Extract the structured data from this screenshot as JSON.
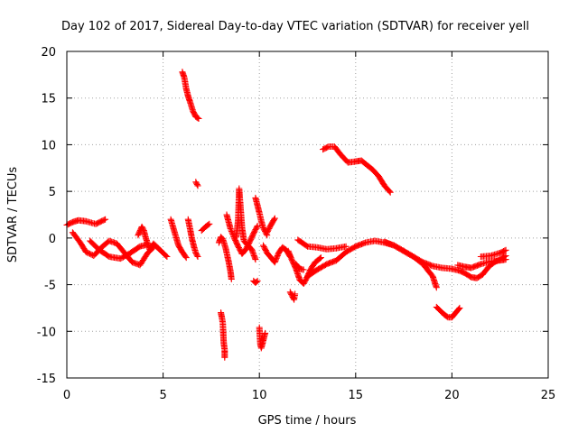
{
  "chart_data": {
    "type": "scatter",
    "title": "Day 102 of 2017, Sidereal Day-to-day VTEC variation (SDTVAR) for receiver yell",
    "xlabel": "GPS time / hours",
    "ylabel": "SDTVAR / TECUs",
    "xlim": [
      0,
      25
    ],
    "ylim": [
      -15,
      20
    ],
    "xticks": [
      "0",
      "5",
      "10",
      "15",
      "20",
      "25"
    ],
    "yticks": [
      "20",
      "15",
      "10",
      "5",
      "0",
      "-5",
      "-10",
      "-15"
    ],
    "grid": true,
    "marker": "+",
    "marker_color": "#ff0000",
    "series": [
      {
        "name": "SDTVAR",
        "segments": [
          [
            [
              0.0,
              1.4
            ],
            [
              0.3,
              1.7
            ],
            [
              0.6,
              1.9
            ],
            [
              1.0,
              1.8
            ],
            [
              1.5,
              1.5
            ],
            [
              2.0,
              2.0
            ]
          ],
          [
            [
              0.3,
              0.6
            ],
            [
              0.7,
              -0.5
            ],
            [
              1.0,
              -1.5
            ],
            [
              1.4,
              -1.9
            ],
            [
              1.8,
              -1.0
            ],
            [
              2.2,
              -0.3
            ],
            [
              2.6,
              -0.6
            ],
            [
              3.0,
              -1.6
            ],
            [
              3.4,
              -2.6
            ],
            [
              3.8,
              -2.9
            ],
            [
              4.2,
              -1.6
            ],
            [
              4.5,
              -1.0
            ]
          ],
          [
            [
              1.2,
              -0.3
            ],
            [
              1.7,
              -1.3
            ],
            [
              2.2,
              -2.0
            ],
            [
              2.8,
              -2.2
            ],
            [
              3.3,
              -1.6
            ],
            [
              3.8,
              -0.9
            ],
            [
              4.2,
              -0.7
            ]
          ],
          [
            [
              3.7,
              0.3
            ],
            [
              3.9,
              1.2
            ],
            [
              4.0,
              0.8
            ],
            [
              4.1,
              0.0
            ],
            [
              4.3,
              -1.2
            ],
            [
              4.5,
              -0.6
            ],
            [
              4.8,
              -1.2
            ],
            [
              5.2,
              -2.0
            ]
          ],
          [
            [
              5.4,
              2.0
            ],
            [
              5.6,
              0.6
            ],
            [
              5.8,
              -0.8
            ],
            [
              6.0,
              -1.5
            ],
            [
              6.2,
              -2.1
            ]
          ],
          [
            [
              6.0,
              17.8
            ],
            [
              6.1,
              17.2
            ],
            [
              6.2,
              16.0
            ],
            [
              6.3,
              15.2
            ],
            [
              6.4,
              14.6
            ],
            [
              6.55,
              13.6
            ],
            [
              6.7,
              13.0
            ],
            [
              6.85,
              12.8
            ]
          ],
          [
            [
              6.3,
              2.0
            ],
            [
              6.4,
              1.0
            ],
            [
              6.5,
              -0.1
            ],
            [
              6.6,
              -0.9
            ],
            [
              6.7,
              -1.6
            ],
            [
              6.8,
              -2.0
            ]
          ],
          [
            [
              6.7,
              6.0
            ],
            [
              6.8,
              5.6
            ]
          ],
          [
            [
              7.0,
              0.8
            ],
            [
              7.2,
              1.2
            ],
            [
              7.4,
              1.5
            ]
          ],
          [
            [
              8.0,
              -8.0
            ],
            [
              8.05,
              -8.5
            ],
            [
              8.1,
              -9.1
            ],
            [
              8.15,
              -11.3
            ],
            [
              8.2,
              -12.0
            ],
            [
              8.2,
              -12.8
            ]
          ],
          [
            [
              7.9,
              -0.5
            ],
            [
              8.0,
              0.1
            ],
            [
              8.1,
              -0.1
            ],
            [
              8.25,
              -1.1
            ],
            [
              8.4,
              -2.5
            ],
            [
              8.5,
              -3.6
            ],
            [
              8.55,
              -4.4
            ]
          ],
          [
            [
              8.3,
              2.5
            ],
            [
              8.5,
              1.0
            ],
            [
              8.7,
              0.0
            ],
            [
              8.9,
              -0.9
            ],
            [
              9.1,
              -1.7
            ],
            [
              9.3,
              -1.2
            ],
            [
              9.5,
              -0.4
            ],
            [
              9.7,
              0.5
            ],
            [
              9.9,
              1.3
            ]
          ],
          [
            [
              8.8,
              0.1
            ],
            [
              8.9,
              2.0
            ],
            [
              8.95,
              5.3
            ],
            [
              9.1,
              1.1
            ],
            [
              9.2,
              -0.3
            ],
            [
              9.4,
              -0.8
            ],
            [
              9.6,
              -1.2
            ],
            [
              9.8,
              -2.3
            ]
          ],
          [
            [
              9.7,
              -4.6
            ],
            [
              9.8,
              -4.8
            ],
            [
              9.9,
              -4.6
            ]
          ],
          [
            [
              9.8,
              4.3
            ],
            [
              9.9,
              3.5
            ],
            [
              10.0,
              2.7
            ],
            [
              10.1,
              1.8
            ],
            [
              10.2,
              1.1
            ],
            [
              10.4,
              0.3
            ]
          ],
          [
            [
              10.0,
              -9.6
            ],
            [
              10.05,
              -11.4
            ],
            [
              10.1,
              -11.8
            ],
            [
              10.2,
              -11.0
            ],
            [
              10.3,
              -10.2
            ]
          ],
          [
            [
              10.2,
              -0.8
            ],
            [
              10.4,
              -1.6
            ],
            [
              10.6,
              -2.1
            ],
            [
              10.8,
              -2.6
            ],
            [
              11.0,
              -1.6
            ],
            [
              11.2,
              -1.0
            ],
            [
              11.4,
              -1.3
            ],
            [
              11.6,
              -2.0
            ]
          ],
          [
            [
              10.4,
              0.6
            ],
            [
              10.6,
              1.4
            ],
            [
              10.8,
              2.1
            ]
          ],
          [
            [
              11.5,
              -1.4
            ],
            [
              11.7,
              -2.4
            ],
            [
              11.9,
              -3.3
            ],
            [
              12.1,
              -4.5
            ],
            [
              12.3,
              -4.9
            ],
            [
              12.5,
              -4.1
            ],
            [
              12.7,
              -3.2
            ],
            [
              12.9,
              -2.6
            ],
            [
              13.2,
              -2.1
            ]
          ],
          [
            [
              11.6,
              -5.8
            ],
            [
              11.7,
              -6.2
            ],
            [
              11.8,
              -6.6
            ],
            [
              11.85,
              -6.0
            ]
          ],
          [
            [
              11.9,
              -2.8
            ],
            [
              12.1,
              -3.3
            ],
            [
              12.3,
              -3.4
            ]
          ],
          [
            [
              12.0,
              -0.2
            ],
            [
              12.5,
              -0.9
            ],
            [
              13.0,
              -1.0
            ],
            [
              13.5,
              -1.2
            ],
            [
              14.0,
              -1.1
            ],
            [
              14.5,
              -0.9
            ]
          ],
          [
            [
              12.5,
              -4.1
            ],
            [
              13.0,
              -3.4
            ],
            [
              13.5,
              -2.8
            ],
            [
              14.0,
              -2.4
            ],
            [
              14.5,
              -1.5
            ],
            [
              15.0,
              -0.9
            ],
            [
              15.5,
              -0.5
            ],
            [
              16.0,
              -0.3
            ],
            [
              16.5,
              -0.5
            ],
            [
              17.0,
              -0.8
            ],
            [
              17.5,
              -1.4
            ],
            [
              18.0,
              -2.0
            ],
            [
              18.5,
              -2.8
            ],
            [
              19.0,
              -4.1
            ],
            [
              19.2,
              -5.3
            ]
          ],
          [
            [
              13.3,
              9.5
            ],
            [
              13.6,
              9.8
            ],
            [
              13.9,
              9.8
            ],
            [
              14.2,
              9.0
            ],
            [
              14.6,
              8.1
            ],
            [
              15.0,
              8.2
            ],
            [
              15.3,
              8.3
            ],
            [
              15.6,
              7.8
            ],
            [
              15.9,
              7.3
            ],
            [
              16.2,
              6.6
            ],
            [
              16.5,
              5.6
            ],
            [
              16.8,
              4.9
            ]
          ],
          [
            [
              16.5,
              -0.4
            ],
            [
              17.0,
              -0.8
            ],
            [
              17.5,
              -1.4
            ],
            [
              18.0,
              -2.0
            ],
            [
              18.5,
              -2.6
            ],
            [
              19.0,
              -3.0
            ],
            [
              19.5,
              -3.2
            ],
            [
              20.0,
              -3.3
            ],
            [
              20.4,
              -3.5
            ],
            [
              20.7,
              -3.8
            ],
            [
              21.0,
              -4.2
            ],
            [
              21.3,
              -4.3
            ],
            [
              21.6,
              -3.9
            ],
            [
              21.9,
              -3.1
            ],
            [
              22.2,
              -2.6
            ],
            [
              22.5,
              -2.3
            ],
            [
              22.8,
              -1.9
            ]
          ],
          [
            [
              20.3,
              -2.9
            ],
            [
              20.7,
              -3.1
            ],
            [
              21.0,
              -3.2
            ],
            [
              21.5,
              -2.8
            ],
            [
              22.0,
              -2.5
            ],
            [
              22.5,
              -2.4
            ],
            [
              22.8,
              -2.3
            ]
          ],
          [
            [
              21.5,
              -2.0
            ],
            [
              22.0,
              -1.9
            ],
            [
              22.5,
              -1.6
            ],
            [
              22.8,
              -1.3
            ]
          ],
          [
            [
              19.2,
              -7.4
            ],
            [
              19.4,
              -7.8
            ],
            [
              19.6,
              -8.2
            ],
            [
              19.8,
              -8.5
            ],
            [
              20.0,
              -8.5
            ],
            [
              20.2,
              -8.0
            ],
            [
              20.4,
              -7.5
            ]
          ]
        ]
      }
    ]
  }
}
